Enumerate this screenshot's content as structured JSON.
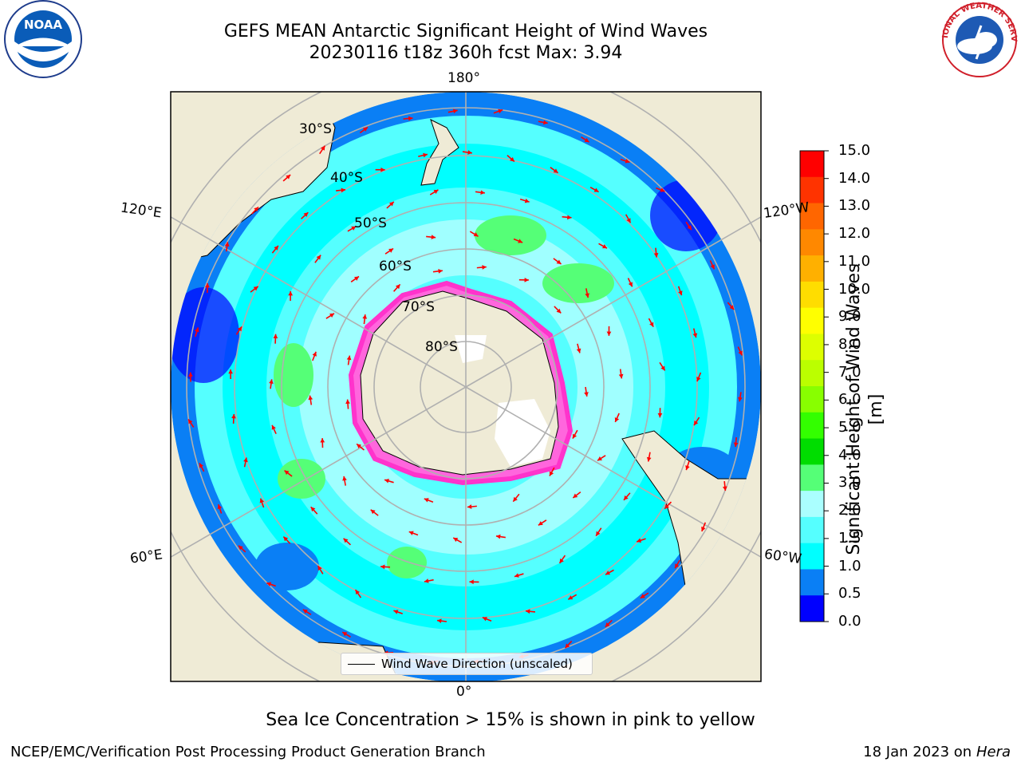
{
  "header": {
    "title_line1": "GEFS MEAN Antarctic Significant Height of Wind Waves",
    "title_line2": "20230116 t18z 360h fcst   Max: 3.94"
  },
  "logos": {
    "left": "NOAA",
    "right": "NATIONAL WEATHER SERVICE"
  },
  "map": {
    "longitude_labels": [
      "180°",
      "120°E",
      "120°W",
      "60°E",
      "60°W",
      "0°"
    ],
    "latitude_labels": [
      "30°S",
      "40°S",
      "50°S",
      "60°S",
      "70°S",
      "80°S"
    ],
    "legend_label": "Wind Wave Direction (unscaled)",
    "colors": {
      "land": "#efebd6",
      "ocean_deep": "#0a7ff5",
      "ocean_mid": "#00ffff",
      "ocean_light": "#a0ffff",
      "ocean_green": "#55ff77",
      "sea_ice": "#ff33cc",
      "arrow": "#ff0000",
      "grid": "#b0b0b0"
    }
  },
  "colorbar": {
    "title": "Significant Height of Wind Waves [m]",
    "ticks": [
      "15.0",
      "14.0",
      "13.0",
      "12.0",
      "11.0",
      "10.0",
      "9.0",
      "8.0",
      "7.0",
      "6.0",
      "5.0",
      "4.0",
      "3.0",
      "2.0",
      "1.5",
      "1.0",
      "0.5",
      "0.0"
    ],
    "colors": [
      "#ff0000",
      "#ff3300",
      "#ff6600",
      "#ff8800",
      "#ffb000",
      "#ffdd00",
      "#ffff00",
      "#ddff00",
      "#bbff00",
      "#88ff00",
      "#33ff00",
      "#00dd00",
      "#55ff77",
      "#aaffff",
      "#55ffff",
      "#00ffff",
      "#0a7ff5",
      "#0000ff"
    ]
  },
  "caption": "Sea Ice Concentration > 15% is shown in pink to yellow",
  "footer": {
    "left": "NCEP/EMC/Verification Post Processing Product Generation Branch",
    "right_date": "18 Jan 2023 on",
    "right_host": "Hera"
  }
}
